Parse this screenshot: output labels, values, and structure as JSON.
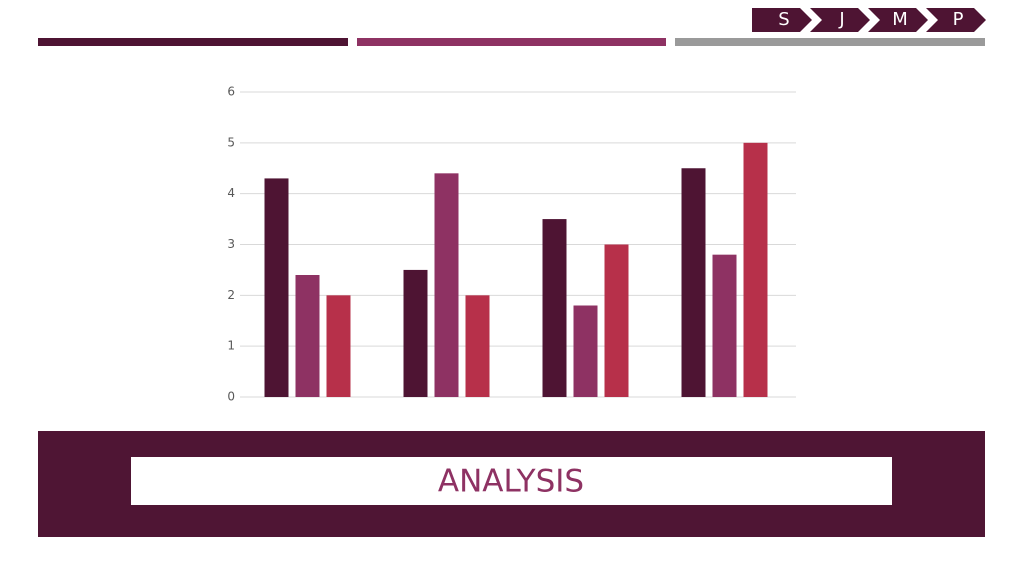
{
  "nav": [
    "S",
    "J",
    "M",
    "P"
  ],
  "banner": {
    "title": "ANALYSIS"
  },
  "chart_data": {
    "type": "bar",
    "categories": [
      null,
      null,
      null,
      null
    ],
    "series": [
      {
        "color": "#4e1433",
        "values": [
          4.3,
          2.5,
          3.5,
          4.5
        ]
      },
      {
        "color": "#8e3263",
        "values": [
          2.4,
          4.4,
          1.8,
          2.8
        ]
      },
      {
        "color": "#b7304a",
        "values": [
          2,
          2,
          3,
          5
        ]
      }
    ],
    "ylim": [
      0,
      6
    ],
    "yticks": [
      0,
      1,
      2,
      3,
      4,
      5,
      6
    ],
    "grid": true
  }
}
